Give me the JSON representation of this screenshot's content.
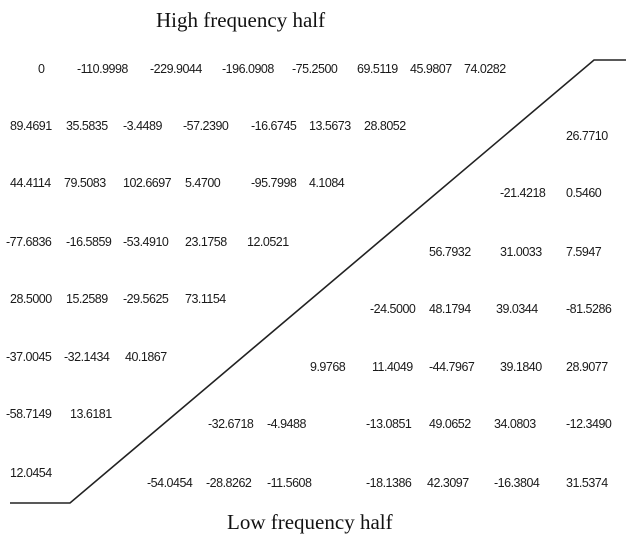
{
  "labels": {
    "top": "High frequency half",
    "bottom": "Low frequency half"
  },
  "rows": [
    [
      "0",
      "-110.9998",
      "-229.9044",
      "-196.0908",
      "-75.2500",
      "69.5119",
      "45.9807",
      "74.0282"
    ],
    [
      "89.4691",
      "35.5835",
      "-3.4489",
      "-57.2390",
      "-16.6745",
      "13.5673",
      "28.8052",
      "26.7710"
    ],
    [
      "44.4114",
      "79.5083",
      "102.6697",
      "5.4700",
      "-95.7998",
      "4.1084",
      "-21.4218",
      "0.5460"
    ],
    [
      "-77.6836",
      "-16.5859",
      "-53.4910",
      "23.1758",
      "12.0521",
      "56.7932",
      "31.0033",
      "7.5947"
    ],
    [
      "28.5000",
      "15.2589",
      "-29.5625",
      "73.1154",
      "-24.5000",
      "48.1794",
      "39.0344",
      "-81.5286"
    ],
    [
      "-37.0045",
      "-32.1434",
      "40.1867",
      "9.9768",
      "11.4049",
      "-44.7967",
      "39.1840",
      "28.9077"
    ],
    [
      "-58.7149",
      "13.6181",
      "-32.6718",
      "-4.9488",
      "-13.0851",
      "49.0652",
      "34.0803",
      "-12.3490"
    ],
    [
      "12.0454",
      "-54.0454",
      "-28.8262",
      "-11.5608",
      "-18.1386",
      "42.3097",
      "-16.3804",
      "31.5374"
    ]
  ]
}
